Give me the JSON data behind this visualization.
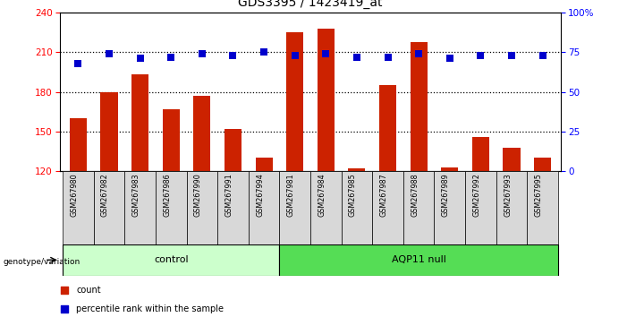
{
  "title": "GDS3395 / 1423419_at",
  "samples": [
    "GSM267980",
    "GSM267982",
    "GSM267983",
    "GSM267986",
    "GSM267990",
    "GSM267991",
    "GSM267994",
    "GSM267981",
    "GSM267984",
    "GSM267985",
    "GSM267987",
    "GSM267988",
    "GSM267989",
    "GSM267992",
    "GSM267993",
    "GSM267995"
  ],
  "counts": [
    160,
    180,
    193,
    167,
    177,
    152,
    130,
    225,
    228,
    122,
    185,
    218,
    123,
    146,
    138,
    130
  ],
  "percentile_ranks": [
    68,
    74,
    71,
    72,
    74,
    73,
    75,
    73,
    74,
    72,
    72,
    74,
    71,
    73,
    73,
    73
  ],
  "n_control": 7,
  "n_aqp11": 9,
  "ylim_left": [
    120,
    240
  ],
  "ylim_right": [
    0,
    100
  ],
  "yticks_left": [
    120,
    150,
    180,
    210,
    240
  ],
  "yticks_right": [
    0,
    25,
    50,
    75,
    100
  ],
  "bar_color": "#CC2200",
  "dot_color": "#0000CC",
  "control_bg": "#CCFFCC",
  "aqp11_bg": "#55DD55",
  "label_bg": "#D8D8D8",
  "bar_width": 0.55,
  "dot_size": 40,
  "grid_yticks": [
    150,
    180,
    210
  ]
}
